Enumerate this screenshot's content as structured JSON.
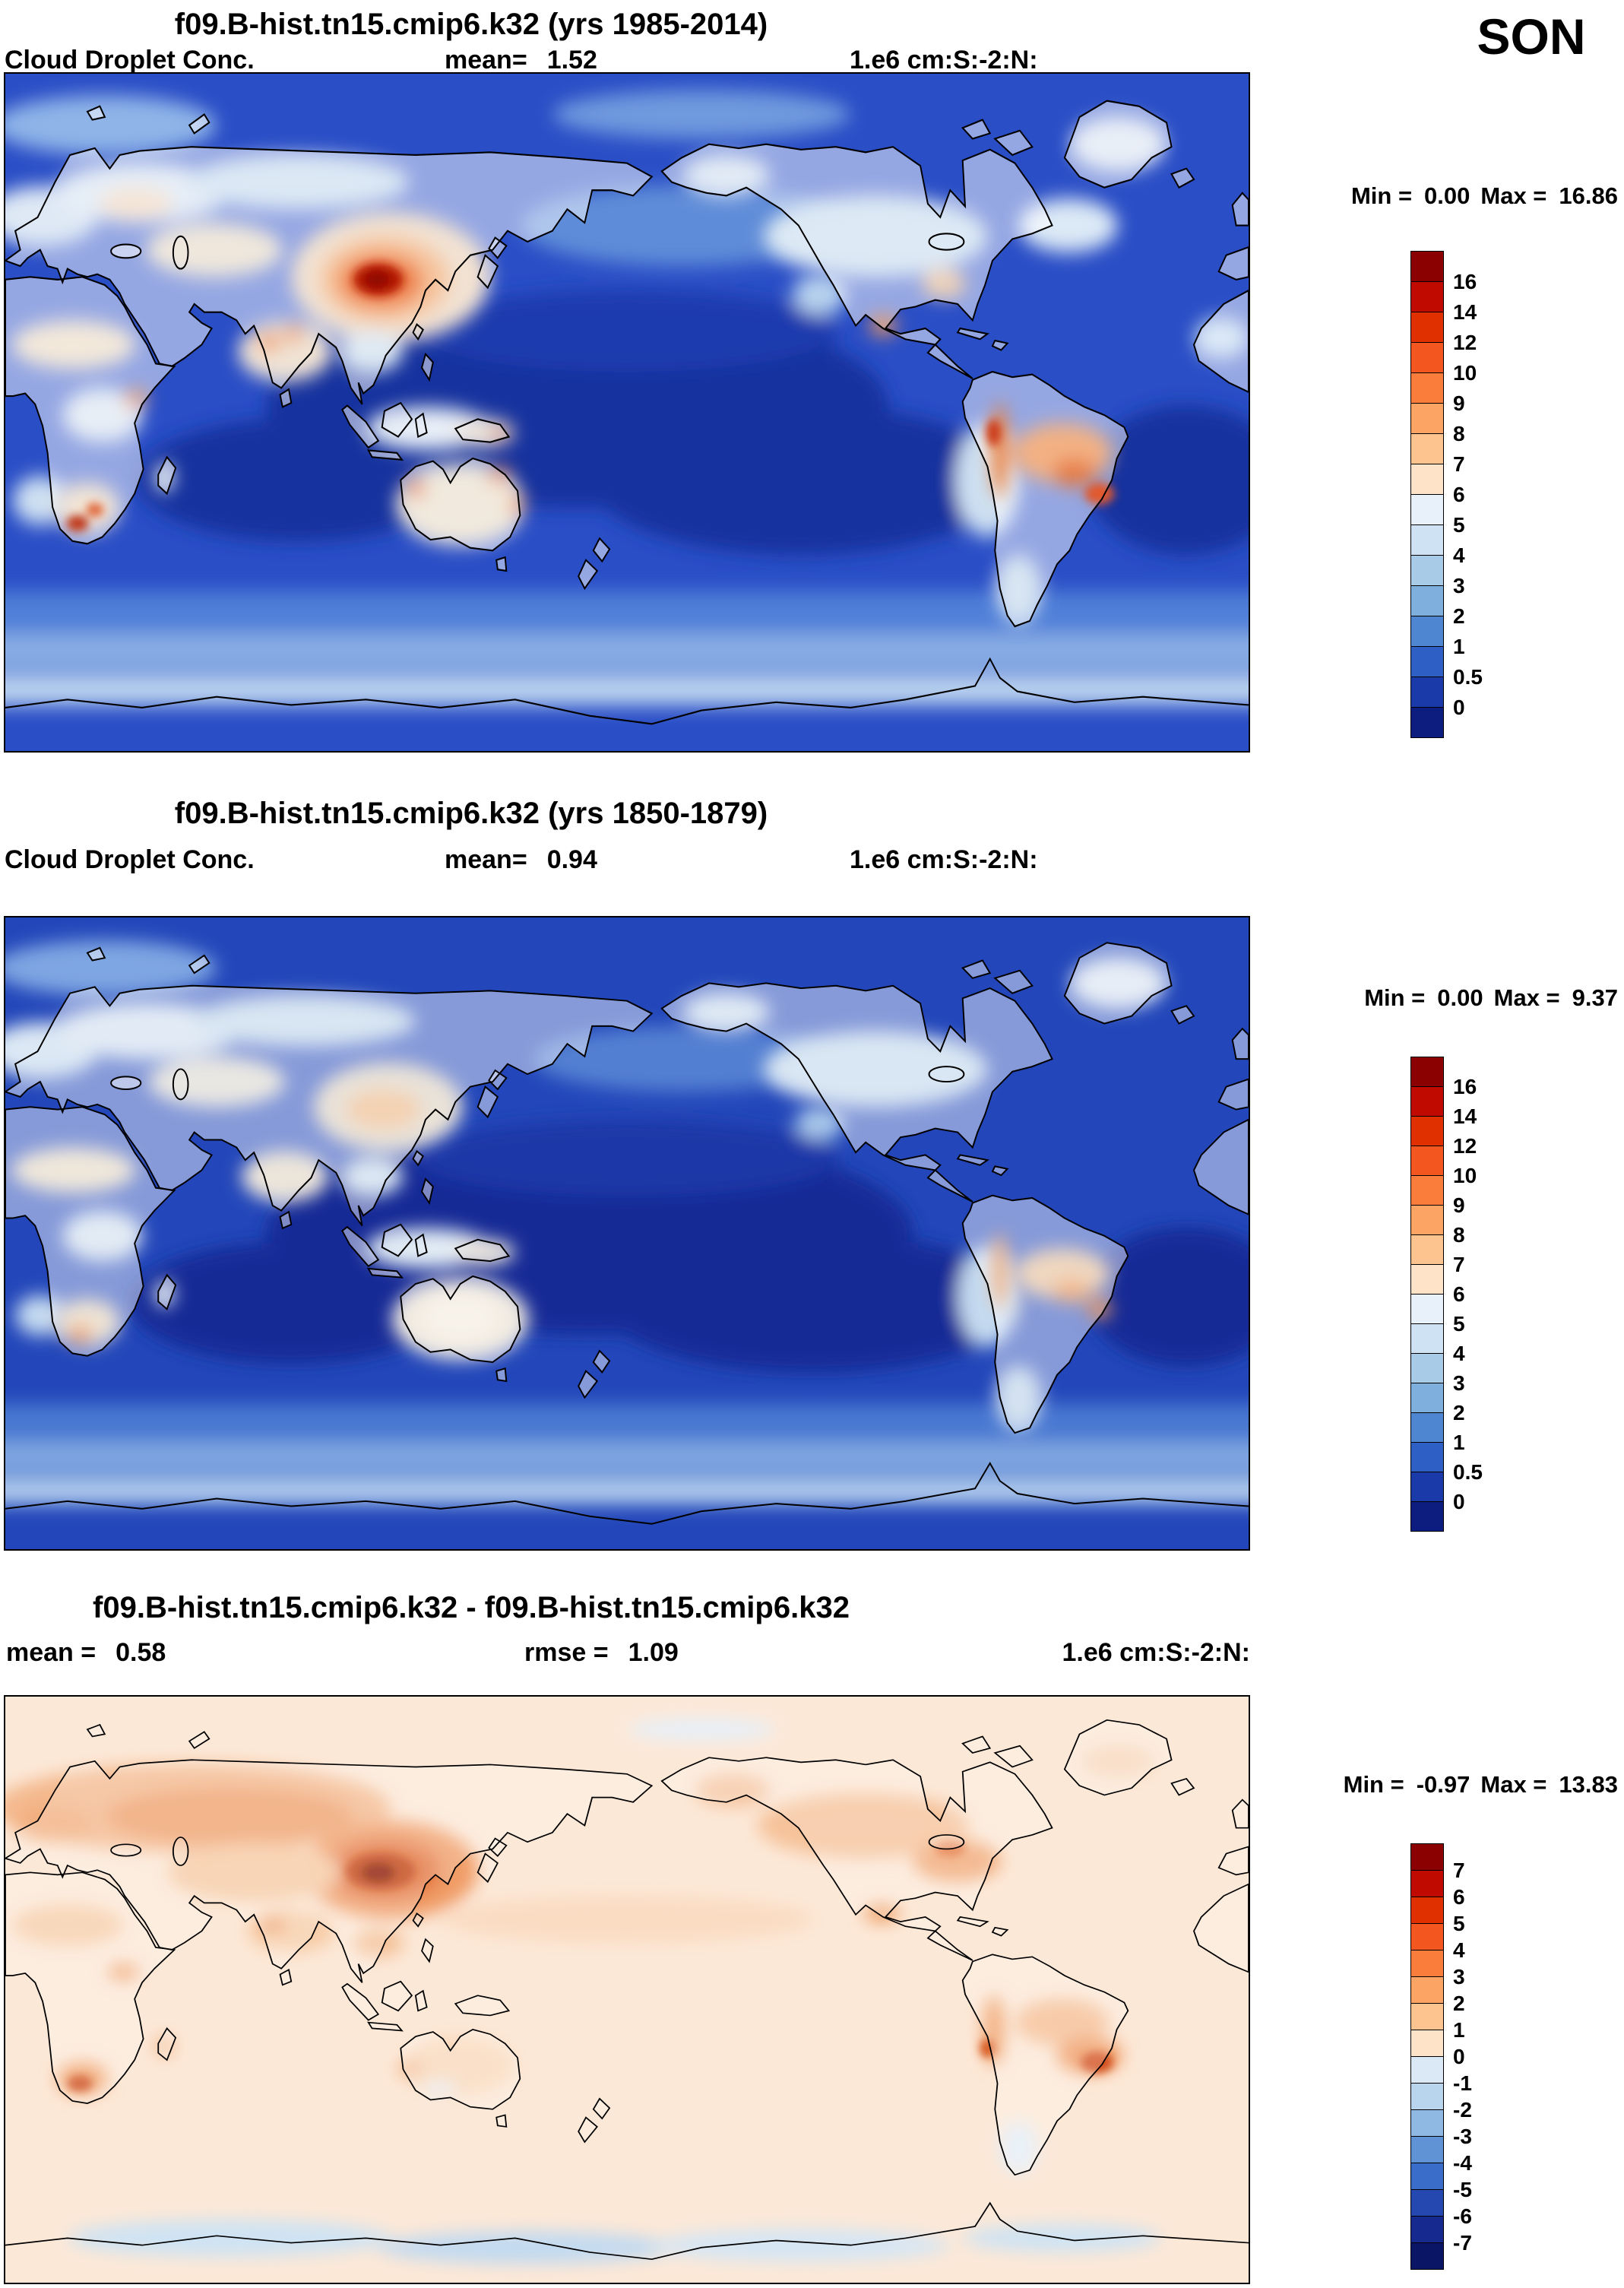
{
  "header": {
    "season_label": "SON"
  },
  "panels": [
    {
      "title": "f09.B-hist.tn15.cmip6.k32 (yrs 1985-2014)",
      "variable": "Cloud Droplet Conc.",
      "mean_label": "mean=",
      "mean_value": "1.52",
      "units": "1.e6 cm:S:-2:N:",
      "min_label": "Min =",
      "min_value": "0.00",
      "max_label": "Max =",
      "max_value": "16.86",
      "colorbar": {
        "ticks": [
          "16",
          "14",
          "12",
          "10",
          "9",
          "8",
          "7",
          "6",
          "5",
          "4",
          "3",
          "2",
          "1",
          "0.5",
          "0"
        ],
        "colors": [
          "#8b0000",
          "#c00a00",
          "#e13000",
          "#f4561f",
          "#fa7d3c",
          "#fca463",
          "#fdc48f",
          "#fee3c8",
          "#e8f1fa",
          "#cfe2f3",
          "#a8cbe8",
          "#7fb0dd",
          "#4f86d2",
          "#2d5fc4",
          "#1b3aaa",
          "#0c1d7f"
        ]
      }
    },
    {
      "title": "f09.B-hist.tn15.cmip6.k32 (yrs 1850-1879)",
      "variable": "Cloud Droplet Conc.",
      "mean_label": "mean=",
      "mean_value": "0.94",
      "units": "1.e6 cm:S:-2:N:",
      "min_label": "Min =",
      "min_value": "0.00",
      "max_label": "Max =",
      "max_value": "9.37",
      "colorbar": {
        "ticks": [
          "16",
          "14",
          "12",
          "10",
          "9",
          "8",
          "7",
          "6",
          "5",
          "4",
          "3",
          "2",
          "1",
          "0.5",
          "0"
        ],
        "colors": [
          "#8b0000",
          "#c00a00",
          "#e13000",
          "#f4561f",
          "#fa7d3c",
          "#fca463",
          "#fdc48f",
          "#fee3c8",
          "#e8f1fa",
          "#cfe2f3",
          "#a8cbe8",
          "#7fb0dd",
          "#4f86d2",
          "#2d5fc4",
          "#1b3aaa",
          "#0c1d7f"
        ]
      }
    },
    {
      "title": "f09.B-hist.tn15.cmip6.k32 - f09.B-hist.tn15.cmip6.k32",
      "mean_label": "mean =",
      "mean_value": "0.58",
      "rmse_label": "rmse =",
      "rmse_value": "1.09",
      "units": "1.e6 cm:S:-2:N:",
      "min_label": "Min =",
      "min_value": "-0.97",
      "max_label": "Max =",
      "max_value": "13.83",
      "colorbar": {
        "ticks": [
          "7",
          "6",
          "5",
          "4",
          "3",
          "2",
          "1",
          "0",
          "-1",
          "-2",
          "-3",
          "-4",
          "-5",
          "-6",
          "-7"
        ],
        "colors": [
          "#8b0000",
          "#c00a00",
          "#e13000",
          "#f4561f",
          "#fa7d3c",
          "#fca463",
          "#fdc48f",
          "#fee3c8",
          "#dbe9f6",
          "#b9d5ee",
          "#8fb9e2",
          "#5f93d6",
          "#3a6cc9",
          "#2447b0",
          "#15298f",
          "#0a1566"
        ]
      }
    }
  ],
  "chart_data": [
    {
      "type": "heatmap",
      "subtype": "global-latlon-contour-map",
      "season": "SON",
      "title": "f09.B-hist.tn15.cmip6.k32 (yrs 1985-2014)",
      "variable": "Cloud Droplet Conc.",
      "units": "1.e6 cm:S:-2:N:",
      "mean": 1.52,
      "min": 0.0,
      "max": 16.86,
      "contour_levels": [
        0,
        0.5,
        1,
        2,
        3,
        4,
        5,
        6,
        7,
        8,
        9,
        10,
        12,
        14,
        16
      ],
      "palette": "blue-to-red diverging",
      "legend_position": "right",
      "notable_features": [
        "maximum dark-red over eastern China",
        "elevated values over continents (Europe, India, Amazon, southern Africa, Australia rims)",
        "low values (dark blue) over remote subtropical oceans"
      ]
    },
    {
      "type": "heatmap",
      "subtype": "global-latlon-contour-map",
      "season": "SON",
      "title": "f09.B-hist.tn15.cmip6.k32 (yrs 1850-1879)",
      "variable": "Cloud Droplet Conc.",
      "units": "1.e6 cm:S:-2:N:",
      "mean": 0.94,
      "min": 0.0,
      "max": 9.37,
      "contour_levels": [
        0,
        0.5,
        1,
        2,
        3,
        4,
        5,
        6,
        7,
        8,
        9,
        10,
        12,
        14,
        16
      ],
      "palette": "blue-to-red diverging",
      "legend_position": "right",
      "notable_features": [
        "mostly blue (low) everywhere",
        "pale maxima over continents only",
        "no strong red maxima"
      ]
    },
    {
      "type": "heatmap",
      "subtype": "global-latlon-difference-map",
      "season": "SON",
      "title": "f09.B-hist.tn15.cmip6.k32 - f09.B-hist.tn15.cmip6.k32",
      "mean": 0.58,
      "rmse": 1.09,
      "units": "1.e6 cm:S:-2:N:",
      "min": -0.97,
      "max": 13.83,
      "contour_levels": [
        -7,
        -6,
        -5,
        -4,
        -3,
        -2,
        -1,
        0,
        1,
        2,
        3,
        4,
        5,
        6,
        7
      ],
      "palette": "blue-to-red diverging",
      "legend_position": "right",
      "notable_features": [
        "strong positive (dark red) anomaly over eastern China",
        "positive anomalies over Eurasia, North America, southeast Brazil, southern Africa",
        "weak negative (pale blue) anomalies over Southern Ocean"
      ]
    }
  ]
}
